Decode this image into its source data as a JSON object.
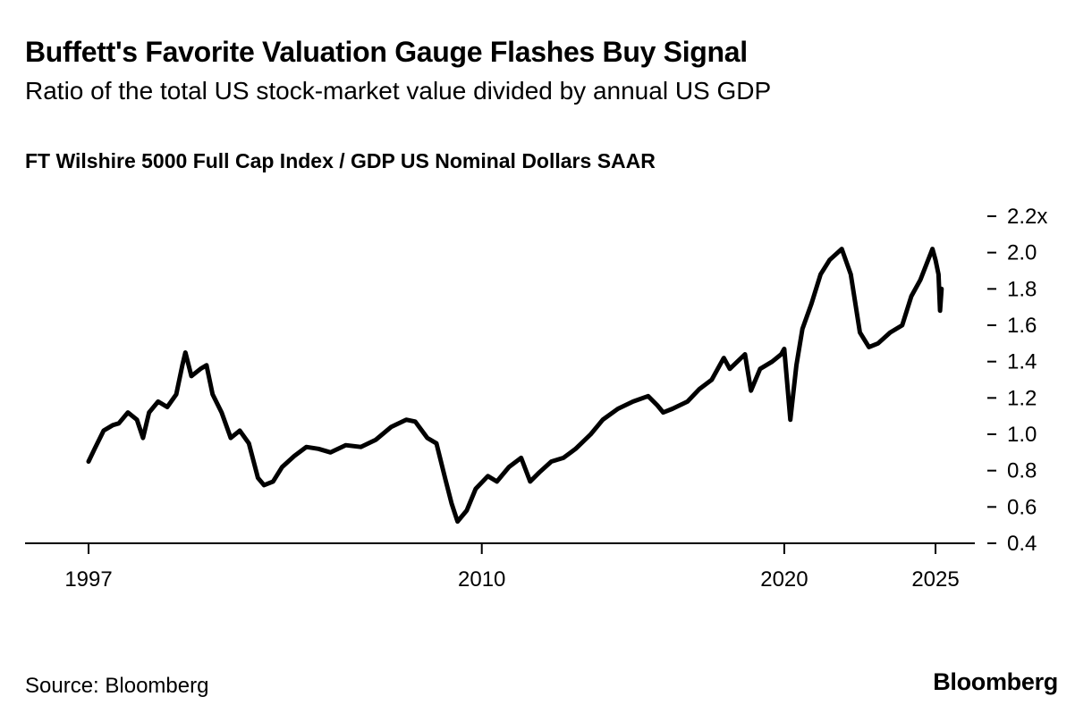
{
  "header": {
    "title": "Buffett's Favorite Valuation Gauge Flashes Buy Signal",
    "subtitle": "Ratio of the total US stock-market value divided by annual US GDP"
  },
  "footer": {
    "source": "Source: Bloomberg",
    "brand": "Bloomberg"
  },
  "chart_data": {
    "type": "line",
    "title": "Buffett's Favorite Valuation Gauge Flashes Buy Signal",
    "subtitle": "Ratio of the total US stock-market value divided by annual US GDP",
    "series": [
      {
        "name": "FT Wilshire 5000 Full Cap Index / GDP US Nominal Dollars SAAR",
        "points": [
          [
            1997.0,
            0.85
          ],
          [
            1997.2,
            0.92
          ],
          [
            1997.5,
            1.02
          ],
          [
            1997.8,
            1.05
          ],
          [
            1998.0,
            1.06
          ],
          [
            1998.3,
            1.12
          ],
          [
            1998.6,
            1.08
          ],
          [
            1998.8,
            0.98
          ],
          [
            1999.0,
            1.12
          ],
          [
            1999.3,
            1.18
          ],
          [
            1999.6,
            1.15
          ],
          [
            1999.9,
            1.22
          ],
          [
            2000.1,
            1.38
          ],
          [
            2000.2,
            1.45
          ],
          [
            2000.4,
            1.32
          ],
          [
            2000.7,
            1.36
          ],
          [
            2000.9,
            1.38
          ],
          [
            2001.1,
            1.22
          ],
          [
            2001.4,
            1.12
          ],
          [
            2001.7,
            0.98
          ],
          [
            2002.0,
            1.02
          ],
          [
            2002.3,
            0.95
          ],
          [
            2002.6,
            0.76
          ],
          [
            2002.8,
            0.72
          ],
          [
            2003.1,
            0.74
          ],
          [
            2003.4,
            0.82
          ],
          [
            2003.8,
            0.88
          ],
          [
            2004.2,
            0.93
          ],
          [
            2004.6,
            0.92
          ],
          [
            2005.0,
            0.9
          ],
          [
            2005.5,
            0.94
          ],
          [
            2006.0,
            0.93
          ],
          [
            2006.5,
            0.97
          ],
          [
            2007.0,
            1.04
          ],
          [
            2007.5,
            1.08
          ],
          [
            2007.8,
            1.07
          ],
          [
            2008.2,
            0.98
          ],
          [
            2008.5,
            0.95
          ],
          [
            2008.8,
            0.75
          ],
          [
            2009.0,
            0.62
          ],
          [
            2009.2,
            0.52
          ],
          [
            2009.5,
            0.58
          ],
          [
            2009.8,
            0.7
          ],
          [
            2010.2,
            0.77
          ],
          [
            2010.5,
            0.74
          ],
          [
            2010.9,
            0.82
          ],
          [
            2011.3,
            0.87
          ],
          [
            2011.6,
            0.74
          ],
          [
            2011.9,
            0.79
          ],
          [
            2012.3,
            0.85
          ],
          [
            2012.7,
            0.87
          ],
          [
            2013.1,
            0.92
          ],
          [
            2013.6,
            1.0
          ],
          [
            2014.0,
            1.08
          ],
          [
            2014.5,
            1.14
          ],
          [
            2015.0,
            1.18
          ],
          [
            2015.5,
            1.21
          ],
          [
            2015.8,
            1.16
          ],
          [
            2016.0,
            1.12
          ],
          [
            2016.3,
            1.14
          ],
          [
            2016.8,
            1.18
          ],
          [
            2017.2,
            1.25
          ],
          [
            2017.6,
            1.3
          ],
          [
            2018.0,
            1.42
          ],
          [
            2018.2,
            1.36
          ],
          [
            2018.7,
            1.44
          ],
          [
            2018.9,
            1.24
          ],
          [
            2019.2,
            1.36
          ],
          [
            2019.6,
            1.4
          ],
          [
            2019.9,
            1.44
          ],
          [
            2020.0,
            1.47
          ],
          [
            2020.2,
            1.08
          ],
          [
            2020.4,
            1.38
          ],
          [
            2020.6,
            1.58
          ],
          [
            2020.9,
            1.72
          ],
          [
            2021.2,
            1.88
          ],
          [
            2021.5,
            1.96
          ],
          [
            2021.9,
            2.02
          ],
          [
            2022.2,
            1.88
          ],
          [
            2022.5,
            1.56
          ],
          [
            2022.8,
            1.48
          ],
          [
            2023.1,
            1.5
          ],
          [
            2023.5,
            1.56
          ],
          [
            2023.9,
            1.6
          ],
          [
            2024.2,
            1.76
          ],
          [
            2024.5,
            1.85
          ],
          [
            2024.9,
            2.02
          ],
          [
            2025.0,
            1.96
          ],
          [
            2025.1,
            1.88
          ],
          [
            2025.15,
            1.68
          ],
          [
            2025.2,
            1.8
          ]
        ]
      }
    ],
    "x_tick_labels": [
      "1997",
      "2010",
      "2020",
      "2025"
    ],
    "x_ticks": [
      1997,
      2010,
      2020,
      2025
    ],
    "y_tick_labels": [
      "0.4",
      "0.6",
      "0.8",
      "1.0",
      "1.2",
      "1.4",
      "1.6",
      "1.8",
      "2.0",
      "2.2x"
    ],
    "y_ticks": [
      0.4,
      0.6,
      0.8,
      1.0,
      1.2,
      1.4,
      1.6,
      1.8,
      2.0,
      2.2
    ],
    "xlim": [
      1996.0,
      2026.0
    ],
    "ylim": [
      0.4,
      2.2
    ],
    "grid": false,
    "legend": "none",
    "colors": {
      "line": "#000000",
      "axis": "#000000",
      "text": "#000000"
    }
  }
}
